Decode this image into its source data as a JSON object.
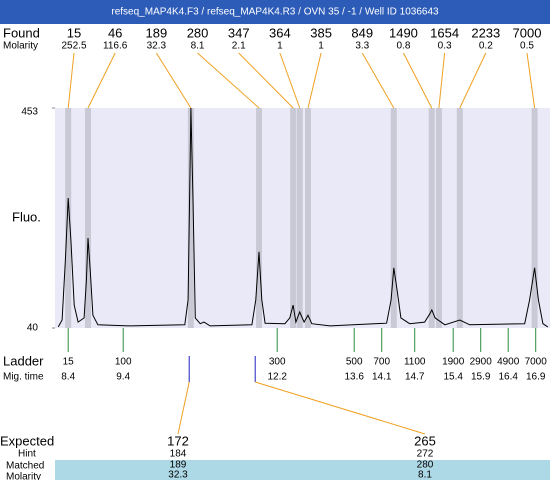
{
  "header": {
    "title": "refseq_MAP4K4.F3 / refseq_MAP4K4.R3 / OVN 35 / -1 / Well ID 1036643"
  },
  "chart_data": {
    "type": "line",
    "y_label": "Fluo.",
    "xlim": [
      8.16,
      17.16
    ],
    "ylim": [
      40,
      453
    ],
    "yticks": [
      40,
      453
    ],
    "x": [
      8.22,
      8.29,
      8.35,
      8.4,
      8.45,
      8.51,
      8.58,
      8.69,
      8.73,
      8.76,
      8.8,
      8.85,
      8.94,
      9.53,
      10.52,
      10.58,
      10.62,
      10.63,
      10.67,
      10.71,
      10.8,
      10.87,
      10.98,
      11.74,
      11.81,
      11.87,
      11.92,
      11.98,
      12.34,
      12.43,
      12.49,
      12.54,
      12.61,
      12.69,
      12.76,
      12.83,
      13.16,
      14.19,
      14.27,
      14.32,
      14.38,
      14.45,
      14.61,
      14.88,
      14.97,
      15.01,
      15.07,
      15.25,
      15.52,
      15.7,
      16.7,
      16.79,
      16.88,
      16.95,
      17.03,
      17.12
    ],
    "series": [
      {
        "color": "#000000",
        "values": [
          42,
          55,
          168,
          284,
          205,
          83,
          51,
          59,
          130,
          209,
          149,
          64,
          46,
          44,
          46,
          93,
          374,
          453,
          280,
          59,
          48,
          51,
          44,
          46,
          93,
          183,
          93,
          49,
          48,
          59,
          83,
          51,
          70,
          51,
          64,
          48,
          44,
          49,
          93,
          153,
          111,
          59,
          48,
          51,
          66,
          74,
          59,
          46,
          55,
          46,
          48,
          93,
          153,
          93,
          48,
          42
        ]
      }
    ]
  },
  "found": {
    "label": "Found",
    "molarity_label": "Molarity",
    "sizes": [
      15,
      46,
      189,
      280,
      347,
      364,
      385,
      849,
      1490,
      1654,
      2233,
      7000
    ],
    "molarity": [
      252.5,
      116.6,
      32.3,
      8.1,
      2.1,
      1,
      1,
      3.3,
      0.8,
      0.3,
      0.2,
      0.5
    ],
    "times": [
      8.4,
      8.76,
      10.63,
      11.87,
      12.49,
      12.61,
      12.76,
      14.32,
      15.01,
      15.14,
      15.52,
      16.88
    ]
  },
  "ladder": {
    "label": "Ladder",
    "time_label": "Mig. time",
    "sizes": [
      15,
      100,
      300,
      500,
      700,
      1100,
      1900,
      2900,
      4900,
      7000
    ],
    "times": [
      8.4,
      9.4,
      12.2,
      13.6,
      14.1,
      14.7,
      15.4,
      15.9,
      16.4,
      16.9
    ]
  },
  "expected": {
    "label": "Expected",
    "hint_label": "Hint",
    "matched_label": "Matched",
    "molarity_label": "Molarity",
    "sizes": [
      172,
      265
    ],
    "hints": [
      184,
      272
    ],
    "matched": [
      189,
      280
    ],
    "molarity": [
      32.3,
      8.1
    ],
    "times": [
      10.6,
      11.8
    ]
  }
}
